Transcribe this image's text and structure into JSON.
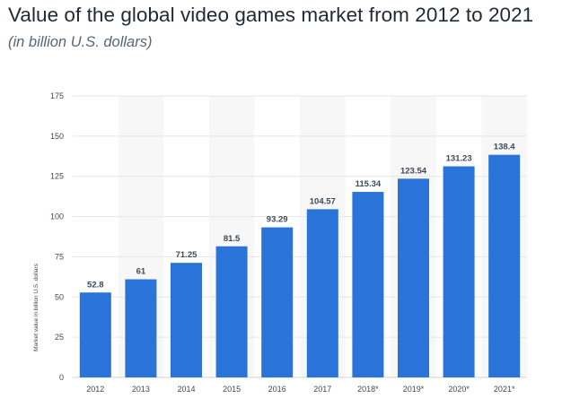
{
  "header": {
    "title": "Value of the global video games market from 2012 to 2021",
    "subtitle": "(in billion U.S. dollars)"
  },
  "chart_data": {
    "type": "bar",
    "title": "Value of the global video games market from 2012 to 2021",
    "subtitle": "(in billion U.S. dollars)",
    "xlabel": "",
    "ylabel": "Market value in billion U.S. dollars",
    "categories": [
      "2012",
      "2013",
      "2014",
      "2015",
      "2016",
      "2017",
      "2018*",
      "2019*",
      "2020*",
      "2021*"
    ],
    "values": [
      52.8,
      61,
      71.25,
      81.5,
      93.29,
      104.57,
      115.34,
      123.54,
      131.23,
      138.4
    ],
    "data_labels": [
      "52.8",
      "61",
      "71.25",
      "81.5",
      "93.29",
      "104.57",
      "115.34",
      "123.54",
      "131.23",
      "138.4"
    ],
    "ylim": [
      0,
      175
    ],
    "yticks": [
      0,
      25,
      50,
      75,
      100,
      125,
      150,
      175
    ],
    "grid": true,
    "bar_color": "#2a73d9",
    "alt_band_color": "#f7f7f7",
    "gridline_color": "#e6e6e6"
  }
}
